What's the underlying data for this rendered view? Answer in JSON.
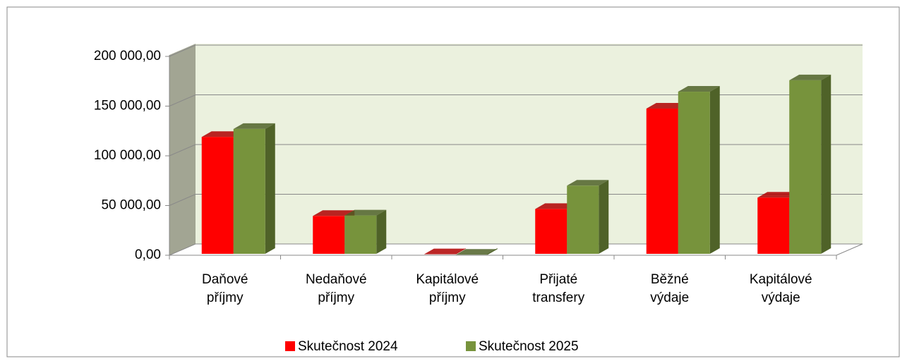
{
  "chart_data": {
    "type": "bar3d",
    "categories": [
      "Daňové příjmy",
      "Nedaňové příjmy",
      "Kapitálové příjmy",
      "Přijaté transfery",
      "Běžné výdaje",
      "Kapitálové výdaje"
    ],
    "series": [
      {
        "name": "Skutečnost 2024",
        "color": "#ff0000",
        "side": "#b00000",
        "values": [
          119000,
          39500,
          1000,
          46500,
          147500,
          58000
        ]
      },
      {
        "name": "Skutečnost 2025",
        "color": "#77933c",
        "side": "#4f6228",
        "values": [
          127000,
          40000,
          500,
          70000,
          164500,
          176000
        ]
      }
    ],
    "ylim": [
      0,
      200000
    ],
    "yticks": [
      {
        "value": 0,
        "label": "0,00"
      },
      {
        "value": 50000,
        "label": "50 000,00"
      },
      {
        "value": 100000,
        "label": "100 000,00"
      },
      {
        "value": 150000,
        "label": "150 000,00"
      },
      {
        "value": 200000,
        "label": "200 000,00"
      }
    ],
    "grid": true,
    "legend": "bottom"
  }
}
